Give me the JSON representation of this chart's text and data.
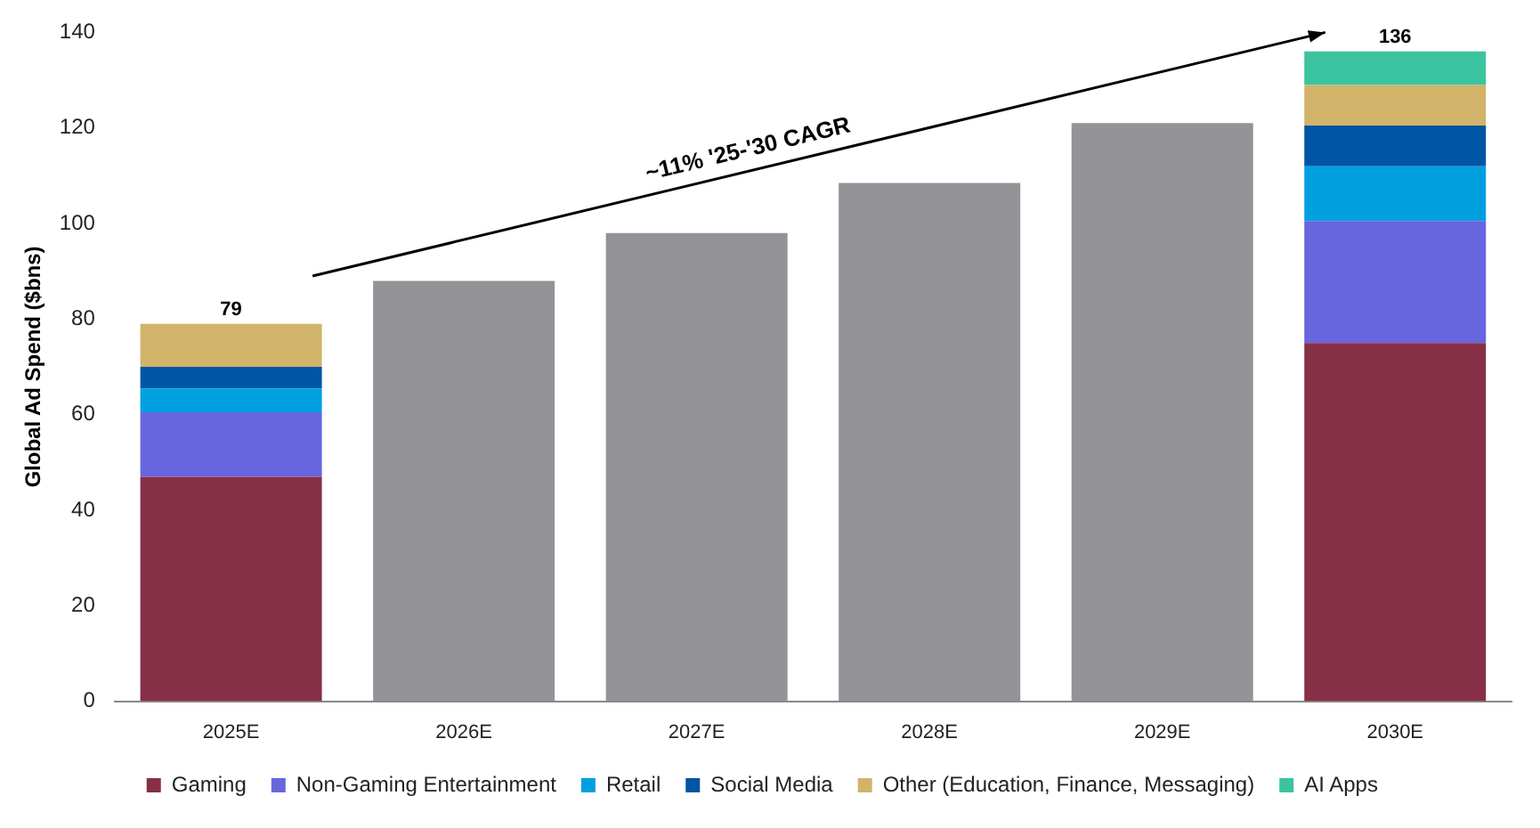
{
  "chart_data": {
    "type": "bar",
    "stacked": true,
    "ylabel": "Global Ad Spend ($bns)",
    "categories": [
      "2025E",
      "2026E",
      "2027E",
      "2028E",
      "2029E",
      "2030E"
    ],
    "series": [
      {
        "name": "Gaming",
        "color": "#862f47",
        "values": [
          47,
          null,
          null,
          null,
          null,
          75
        ]
      },
      {
        "name": "Non-Gaming Entertainment",
        "color": "#6766de",
        "values": [
          13.5,
          null,
          null,
          null,
          null,
          25.5
        ]
      },
      {
        "name": "Retail",
        "color": "#00a0e0",
        "values": [
          5,
          null,
          null,
          null,
          null,
          11.5
        ]
      },
      {
        "name": "Social Media",
        "color": "#0055a4",
        "values": [
          4.5,
          null,
          null,
          null,
          null,
          8.5
        ]
      },
      {
        "name": "Other (Education, Finance, Messaging)",
        "color": "#d1b469",
        "values": [
          9,
          null,
          null,
          null,
          null,
          8.5
        ]
      },
      {
        "name": "AI Apps",
        "color": "#3cc3a0",
        "values": [
          null,
          null,
          null,
          null,
          null,
          7
        ]
      },
      {
        "color": "#939398",
        "values": [
          null,
          88,
          98,
          108.5,
          121,
          null
        ]
      }
    ],
    "totals": [
      "79",
      null,
      null,
      null,
      null,
      "136"
    ],
    "annotations": [
      "~11% '25-'30 CAGR"
    ],
    "ylim": [
      0,
      140
    ],
    "yticks": [
      0,
      20,
      40,
      60,
      80,
      100,
      120,
      140
    ],
    "grid": false,
    "legend": "bottom"
  }
}
